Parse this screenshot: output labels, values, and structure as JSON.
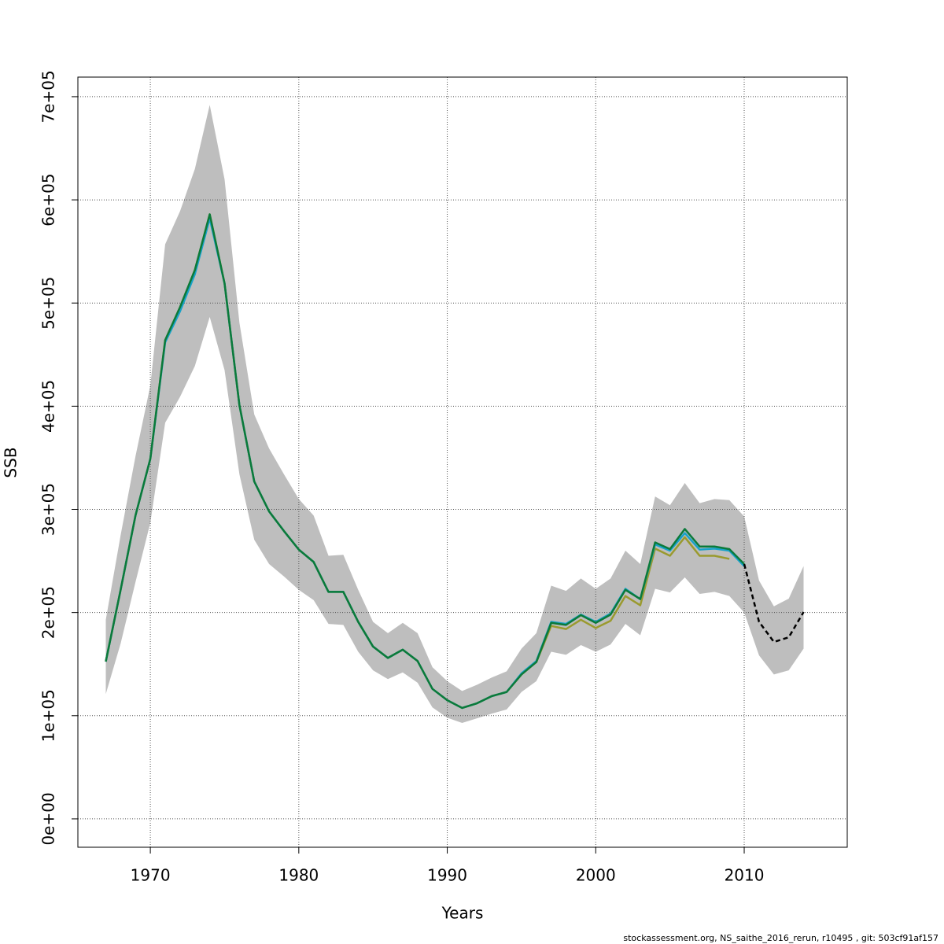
{
  "chart_data": {
    "type": "line",
    "xlabel": "Years",
    "ylabel": "SSB",
    "footer": "stockassessment.org, NS_saithe_2016_rerun, r10495 , git: 503cf91af157",
    "grid": true,
    "x": [
      1967,
      1968,
      1969,
      1970,
      1971,
      1972,
      1973,
      1974,
      1975,
      1976,
      1977,
      1978,
      1979,
      1980,
      1981,
      1982,
      1983,
      1984,
      1985,
      1986,
      1987,
      1988,
      1989,
      1990,
      1991,
      1992,
      1993,
      1994,
      1995,
      1996,
      1997,
      1998,
      1999,
      2000,
      2001,
      2002,
      2003,
      2004,
      2005,
      2006,
      2007,
      2008,
      2009,
      2010,
      2011,
      2012,
      2013,
      2014
    ],
    "xlim": [
      1965.12,
      2016.94
    ],
    "xticks": [
      1970,
      1980,
      1990,
      2000,
      2010
    ],
    "ylim": [
      -27500,
      719000
    ],
    "yticks": [
      {
        "value": 0,
        "label": "0e+00"
      },
      {
        "value": 100000,
        "label": "1e+05"
      },
      {
        "value": 200000,
        "label": "2e+05"
      },
      {
        "value": 300000,
        "label": "3e+05"
      },
      {
        "value": 400000,
        "label": "4e+05"
      },
      {
        "value": 500000,
        "label": "5e+05"
      },
      {
        "value": 600000,
        "label": "6e+05"
      },
      {
        "value": 700000,
        "label": "7e+05"
      }
    ],
    "band": {
      "color": "#bebebe",
      "upper": [
        193000,
        275000,
        351500,
        420000,
        557000,
        589000,
        630000,
        692000,
        620000,
        481000,
        392000,
        359000,
        334000,
        310000,
        294000,
        255000,
        256000,
        222000,
        191000,
        180000,
        190000,
        180000,
        147000,
        133500,
        124000,
        130000,
        137000,
        143000,
        165000,
        180000,
        226000,
        221000,
        233000,
        223000,
        233000,
        260000,
        247000,
        312500,
        304000,
        325500,
        306000,
        310000,
        309000,
        293000,
        231000,
        206000,
        213500,
        245000
      ],
      "lower": [
        121000,
        170000,
        229500,
        287000,
        384000,
        409000,
        439000,
        486500,
        435000,
        334000,
        270500,
        247000,
        235000,
        222000,
        212000,
        189000,
        188000,
        162000,
        144000,
        135500,
        142000,
        132000,
        108000,
        98000,
        93000,
        97500,
        102000,
        106000,
        123000,
        133500,
        162000,
        159000,
        168500,
        162000,
        169000,
        189000,
        178000,
        223000,
        219500,
        234000,
        218000,
        220000,
        216000,
        200000,
        158500,
        140000,
        144000,
        165000
      ]
    },
    "series": [
      {
        "color": "#9a9a2e",
        "dashed": false,
        "values": [
          152500,
          222000,
          294000,
          349000,
          464000,
          496000,
          532000,
          586000,
          519000,
          401000,
          327000,
          298000,
          279000,
          261000,
          249000,
          220000,
          220000,
          191000,
          167000,
          156000,
          164000,
          153000,
          126000,
          115000,
          107500,
          112000,
          119000,
          123000,
          140000,
          152000,
          187000,
          184000,
          193000,
          185000,
          192000,
          216000,
          207000,
          262000,
          255000,
          273000,
          255000,
          255000,
          252000,
          null,
          null,
          null,
          null,
          null
        ]
      },
      {
        "color": "#17a2c8",
        "dashed": false,
        "values": [
          152500,
          222000,
          294000,
          349000,
          462000,
          492000,
          528000,
          582000,
          519000,
          401000,
          327000,
          298000,
          279000,
          261000,
          249000,
          220000,
          220000,
          191000,
          167000,
          156000,
          164000,
          153000,
          126000,
          115000,
          107500,
          112000,
          119000,
          123000,
          141000,
          153000,
          191000,
          189000,
          198000,
          191000,
          199000,
          223000,
          213000,
          266000,
          260000,
          277000,
          261000,
          262000,
          260000,
          245000,
          null,
          null,
          null,
          null
        ]
      },
      {
        "color": "#0b7a3a",
        "dashed": false,
        "values": [
          152500,
          222000,
          294000,
          349000,
          464000,
          496000,
          532000,
          586000,
          519000,
          401000,
          327000,
          298000,
          279000,
          261000,
          249000,
          220000,
          220000,
          191000,
          167000,
          156000,
          164000,
          153000,
          126000,
          115000,
          107500,
          112000,
          119000,
          123000,
          140000,
          152000,
          190000,
          188000,
          197500,
          190000,
          198000,
          222000,
          213000,
          268000,
          261500,
          281000,
          264000,
          264000,
          261500,
          247000,
          null,
          null,
          null,
          null
        ]
      },
      {
        "color": "#000000",
        "dashed": true,
        "values": [
          null,
          null,
          null,
          null,
          null,
          null,
          null,
          null,
          null,
          null,
          null,
          null,
          null,
          null,
          null,
          null,
          null,
          null,
          null,
          null,
          null,
          null,
          null,
          null,
          null,
          null,
          null,
          null,
          null,
          null,
          null,
          null,
          null,
          null,
          null,
          null,
          null,
          null,
          null,
          null,
          null,
          null,
          null,
          247000,
          191000,
          171500,
          176000,
          200500
        ]
      }
    ]
  }
}
